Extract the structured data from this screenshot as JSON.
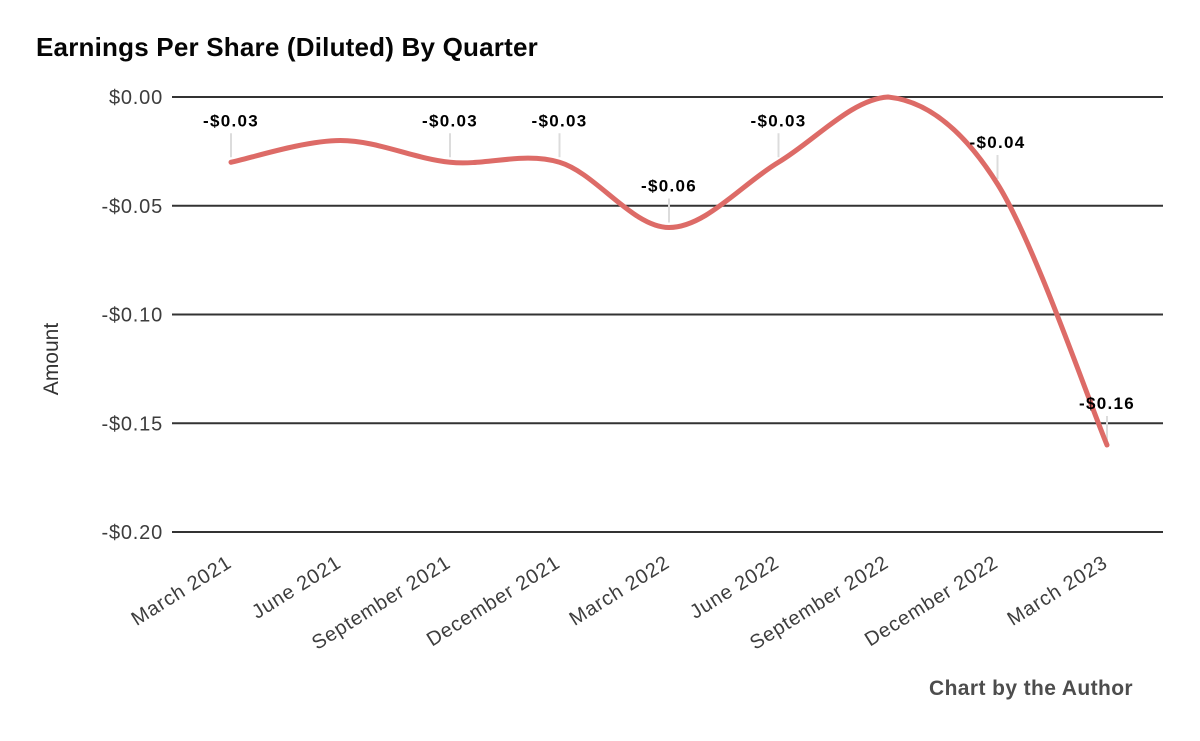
{
  "title": "Earnings Per Share (Diluted) By Quarter",
  "attribution": "Chart by the Author",
  "colors": {
    "line": "#dd6b67",
    "gridline": "#333333",
    "leader_line": "#dcdcdc",
    "axis_text": "#3d3d3d",
    "data_label_text": "#000000",
    "title_text": "#050505",
    "attribution_text": "#4d4d4d",
    "background": "#ffffff"
  },
  "chart_data": {
    "type": "line",
    "title": "Earnings Per Share (Diluted) By Quarter",
    "xlabel": "",
    "ylabel": "Amount",
    "categories": [
      "March 2021",
      "June 2021",
      "September 2021",
      "December 2021",
      "March 2022",
      "June 2022",
      "September 2022",
      "December 2022",
      "March 2023"
    ],
    "series": [
      {
        "name": "Earnings Per Share (Diluted)",
        "color": "#dd6b67",
        "values": [
          -0.03,
          -0.02,
          -0.03,
          -0.03,
          -0.06,
          -0.03,
          0.0,
          -0.04,
          -0.16
        ],
        "point_labels": [
          "-$0.03",
          "",
          "-$0.03",
          "-$0.03",
          "-$0.06",
          "-$0.03",
          "",
          "-$0.04",
          "-$0.16"
        ]
      }
    ],
    "y_axis": {
      "range": [
        -0.2,
        0.0
      ],
      "ticks": [
        {
          "value": 0.0,
          "label": "$0.00"
        },
        {
          "value": -0.05,
          "label": "-$0.05"
        },
        {
          "value": -0.1,
          "label": "-$0.10"
        },
        {
          "value": -0.15,
          "label": "-$0.15"
        },
        {
          "value": -0.2,
          "label": "-$0.20"
        }
      ]
    },
    "x_tick_rotation_deg": -32,
    "line_smooth": true,
    "grid": "horizontal",
    "legend": "none"
  }
}
